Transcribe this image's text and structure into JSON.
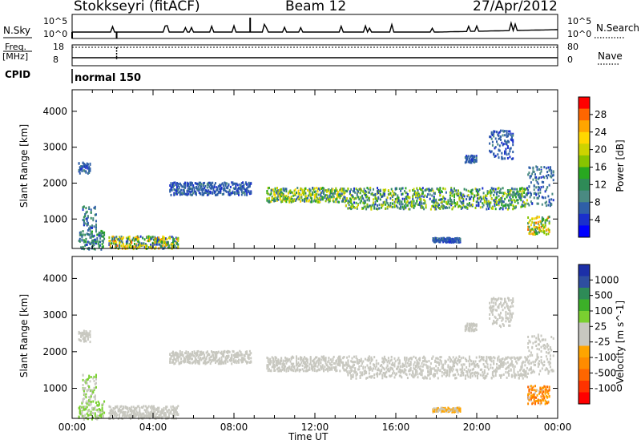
{
  "header": {
    "station": "Stokkseyri (fitACF)",
    "beam": "Beam 12",
    "date": "27/Apr/2012"
  },
  "top_panels": {
    "nsky_label": "N.Sky",
    "nsky_ticks": [
      "10^5",
      "10^0"
    ],
    "nsearch_label": "N.Search",
    "nsearch_ticks": [
      "10^5",
      "10^0"
    ],
    "freq_label": "Freq.",
    "freq_unit": "[MHz]",
    "freq_ticks": [
      "18",
      "8"
    ],
    "nave_label": "Nave",
    "nave_ticks": [
      "80",
      "0"
    ],
    "cpid_label": "CPID",
    "cpid_value": "normal 150"
  },
  "chart_data": [
    {
      "type": "heatmap",
      "name": "power",
      "ylabel": "Slant Range [km]",
      "xlabel": "Time UT",
      "x_ticks": [
        "00:00",
        "04:00",
        "08:00",
        "12:00",
        "16:00",
        "20:00",
        "00:00"
      ],
      "xlim_hours": [
        0,
        24
      ],
      "ylim": [
        180,
        4600
      ],
      "y_ticks": [
        "4000",
        "3000",
        "2000",
        "1000"
      ],
      "colorbar": {
        "label": "Power [dB]",
        "ticks": [
          "28",
          "24",
          "20",
          "16",
          "12",
          "8",
          "4"
        ],
        "colors": [
          "#ff0000",
          "#ff6600",
          "#ffa500",
          "#ffd700",
          "#cdd300",
          "#88c400",
          "#28a820",
          "#2e8b57",
          "#4a8a82",
          "#2f5fa8",
          "#1a2fcc",
          "#0000ff"
        ]
      },
      "regions": [
        {
          "t": [
            0.3,
            1.6
          ],
          "r": [
            180,
            700
          ],
          "v": [
            4,
            14
          ]
        },
        {
          "t": [
            0.5,
            1.2
          ],
          "r": [
            700,
            1400
          ],
          "v": [
            4,
            12
          ]
        },
        {
          "t": [
            0.3,
            0.9
          ],
          "r": [
            2300,
            2600
          ],
          "v": [
            4,
            8
          ]
        },
        {
          "t": [
            1.8,
            5.2
          ],
          "r": [
            200,
            550
          ],
          "v": [
            4,
            26
          ]
        },
        {
          "t": [
            4.8,
            8.8
          ],
          "r": [
            1700,
            2050
          ],
          "v": [
            4,
            8
          ]
        },
        {
          "t": [
            9.6,
            13.5
          ],
          "r": [
            1500,
            1900
          ],
          "v": [
            6,
            22
          ]
        },
        {
          "t": [
            13.5,
            22.5
          ],
          "r": [
            1300,
            1900
          ],
          "v": [
            4,
            20
          ]
        },
        {
          "t": [
            22.5,
            23.8
          ],
          "r": [
            1400,
            2500
          ],
          "v": [
            4,
            10
          ]
        },
        {
          "t": [
            17.8,
            19.2
          ],
          "r": [
            380,
            500
          ],
          "v": [
            4,
            8
          ]
        },
        {
          "t": [
            22.5,
            23.6
          ],
          "r": [
            600,
            1100
          ],
          "v": [
            8,
            26
          ]
        },
        {
          "t": [
            20.6,
            21.8
          ],
          "r": [
            2700,
            3500
          ],
          "v": [
            4,
            8
          ]
        },
        {
          "t": [
            19.4,
            20.0
          ],
          "r": [
            2600,
            2800
          ],
          "v": [
            4,
            8
          ]
        }
      ]
    },
    {
      "type": "heatmap",
      "name": "velocity",
      "ylabel": "Slant Range [km]",
      "xlabel": "Time UT",
      "x_ticks": [
        "00:00",
        "04:00",
        "08:00",
        "12:00",
        "16:00",
        "20:00",
        "00:00"
      ],
      "xlim_hours": [
        0,
        24
      ],
      "ylim": [
        180,
        4600
      ],
      "y_ticks": [
        "4000",
        "3000",
        "2000",
        "1000"
      ],
      "colorbar": {
        "label": "Velocity [m s^-1]",
        "ticks": [
          "1000",
          "500",
          "100",
          "25",
          "-25",
          "-100",
          "-500",
          "-1000"
        ],
        "colors": [
          "#1c2fa8",
          "#2e4ea0",
          "#2e8b57",
          "#3cb028",
          "#7ad030",
          "#c8c8c0",
          "#c8c8c0",
          "#ffa500",
          "#ff8c00",
          "#ff6600",
          "#ff3300",
          "#ff0000"
        ]
      },
      "regions": [
        {
          "t": [
            0.3,
            1.6
          ],
          "r": [
            180,
            700
          ],
          "v": [
            50,
            400
          ]
        },
        {
          "t": [
            0.5,
            1.2
          ],
          "r": [
            700,
            1400
          ],
          "v": [
            20,
            300
          ]
        },
        {
          "t": [
            0.3,
            0.9
          ],
          "r": [
            2300,
            2600
          ],
          "v": [
            -60,
            -20
          ]
        },
        {
          "t": [
            1.8,
            5.2
          ],
          "r": [
            200,
            550
          ],
          "v": [
            30,
            200
          ]
        },
        {
          "t": [
            4.8,
            8.8
          ],
          "r": [
            1700,
            2050
          ],
          "v": [
            -10,
            10
          ]
        },
        {
          "t": [
            9.6,
            13.5
          ],
          "r": [
            1500,
            1900
          ],
          "v": [
            -20,
            20
          ]
        },
        {
          "t": [
            13.5,
            22.5
          ],
          "r": [
            1300,
            1900
          ],
          "v": [
            -20,
            20
          ]
        },
        {
          "t": [
            22.5,
            23.8
          ],
          "r": [
            1400,
            2500
          ],
          "v": [
            -20,
            20
          ]
        },
        {
          "t": [
            17.8,
            19.2
          ],
          "r": [
            380,
            500
          ],
          "v": [
            -300,
            -100
          ]
        },
        {
          "t": [
            22.5,
            23.6
          ],
          "r": [
            600,
            1100
          ],
          "v": [
            -800,
            -100
          ]
        },
        {
          "t": [
            20.6,
            21.8
          ],
          "r": [
            2700,
            3500
          ],
          "v": [
            -20,
            20
          ]
        },
        {
          "t": [
            19.4,
            20.0
          ],
          "r": [
            2600,
            2800
          ],
          "v": [
            -20,
            20
          ]
        }
      ]
    }
  ]
}
